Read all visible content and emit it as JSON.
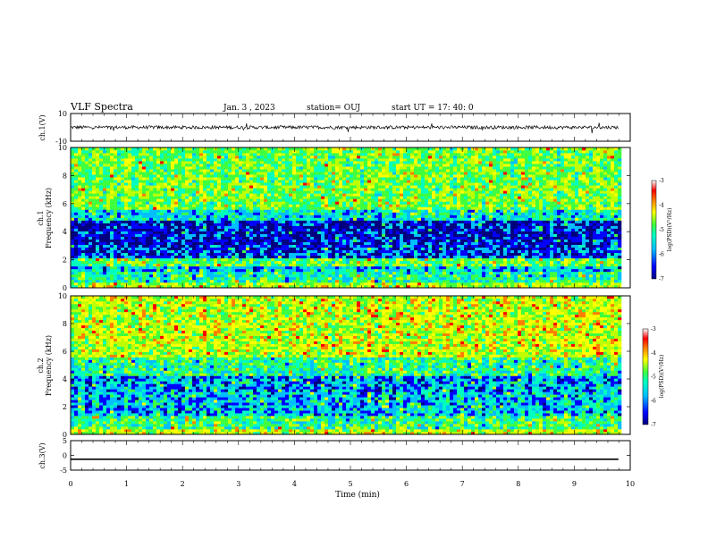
{
  "header": {
    "title": "VLF Spectra",
    "date": "Jan. 3 , 2023",
    "station": "station= OUJ",
    "start": "start UT =  17: 40: 0"
  },
  "colors": {
    "axis": "#000000",
    "waveform": "#000000",
    "colormap": [
      "#00007f",
      "#0000ff",
      "#00bfff",
      "#00ffbf",
      "#3fff3f",
      "#bfff00",
      "#ffff00",
      "#ff7f00",
      "#ff0000",
      "#ffffff"
    ]
  },
  "chart_data": [
    {
      "type": "line",
      "panel": "ch1-waveform",
      "ylabel": "ch.1(V)",
      "ylim": [
        -10,
        10
      ],
      "yticks": [
        10,
        -10
      ],
      "xlim": [
        0,
        10
      ],
      "series": [
        {
          "baseline": 0,
          "noise_amplitude": 1.2,
          "x_end": 9.8
        }
      ]
    },
    {
      "type": "heatmap",
      "panel": "ch1-spectrogram",
      "ylabel": "Frequency (kHz)",
      "channel_label": "ch.1",
      "ylim": [
        0,
        10
      ],
      "yticks": [
        0,
        2,
        4,
        6,
        8,
        10
      ],
      "xlim": [
        0,
        10
      ],
      "x_end": 9.8,
      "colorbar": {
        "label": "log(PSD)(V²/Hz)",
        "range": [
          -7,
          -3
        ],
        "ticks": [
          -3,
          -4,
          -5,
          -6,
          -7
        ]
      },
      "bands": [
        {
          "f": [
            0,
            0.3
          ],
          "level": -4.6
        },
        {
          "f": [
            0.3,
            1.2
          ],
          "level": -5.4
        },
        {
          "f": [
            1.2,
            1.6
          ],
          "level": -5.8
        },
        {
          "f": [
            1.6,
            2.2
          ],
          "level": -5.0
        },
        {
          "f": [
            2.2,
            3.0
          ],
          "level": -6.3
        },
        {
          "f": [
            3.0,
            4.8
          ],
          "level": -6.5
        },
        {
          "f": [
            4.8,
            5.6
          ],
          "level": -5.6
        },
        {
          "f": [
            5.6,
            10
          ],
          "level": -4.9
        }
      ]
    },
    {
      "type": "heatmap",
      "panel": "ch2-spectrogram",
      "ylabel": "Frequency (kHz)",
      "channel_label": "ch.2",
      "ylim": [
        0,
        10
      ],
      "yticks": [
        0,
        2,
        4,
        6,
        8,
        10
      ],
      "xlim": [
        0,
        10
      ],
      "x_end": 9.8,
      "colorbar": {
        "label": "log(PSD)(V²/Hz)",
        "range": [
          -7,
          -3
        ],
        "ticks": [
          -3,
          -4,
          -5,
          -6,
          -7
        ]
      },
      "bands": [
        {
          "f": [
            0,
            0.4
          ],
          "level": -4.5
        },
        {
          "f": [
            0.4,
            1.4
          ],
          "level": -5.2
        },
        {
          "f": [
            1.4,
            3.0
          ],
          "level": -5.8
        },
        {
          "f": [
            3.0,
            4.2
          ],
          "level": -6.0
        },
        {
          "f": [
            4.2,
            5.5
          ],
          "level": -5.3
        },
        {
          "f": [
            5.5,
            10
          ],
          "level": -4.5
        }
      ]
    },
    {
      "type": "line",
      "panel": "ch3-waveform",
      "ylabel": "ch.3(V)",
      "ylim": [
        -5,
        5
      ],
      "yticks": [
        5,
        0,
        -5
      ],
      "xlim": [
        0,
        10
      ],
      "series": [
        {
          "baseline": -1.3,
          "noise_amplitude": 0,
          "x_end": 9.8
        }
      ]
    }
  ],
  "x_axis": {
    "label": "Time (min)",
    "ticks": [
      "0",
      "1",
      "2",
      "3",
      "4",
      "5",
      "6",
      "7",
      "8",
      "9",
      "10"
    ]
  }
}
